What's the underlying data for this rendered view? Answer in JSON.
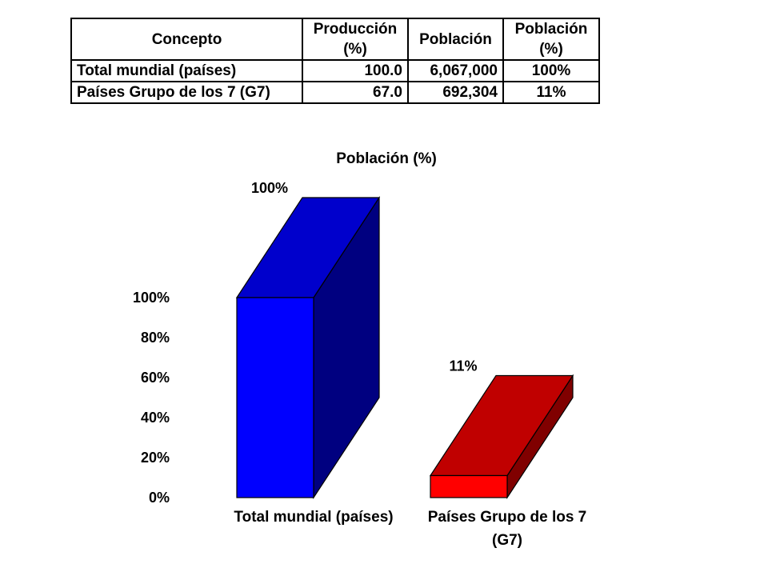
{
  "table": {
    "headers": [
      [
        "Concepto"
      ],
      [
        "Producción",
        "(%)"
      ],
      [
        "Población"
      ],
      [
        "Población",
        "(%)"
      ]
    ],
    "rows": [
      [
        "Total mundial (países)",
        "100.0",
        "6,067,000",
        "100%"
      ],
      [
        "Países Grupo de los 7 (G7)",
        "67.0",
        "692,304",
        "11%"
      ]
    ]
  },
  "chart_data": {
    "type": "bar",
    "title": "Población (%)",
    "categories": [
      [
        "Total mundial (países)"
      ],
      [
        "Países Grupo de los 7",
        "(G7)"
      ]
    ],
    "values": [
      100,
      11
    ],
    "data_labels": [
      "100%",
      "11%"
    ],
    "y_ticks": [
      "100%",
      "80%",
      "60%",
      "40%",
      "20%",
      "0%"
    ],
    "ylim": [
      0,
      100
    ],
    "grid": false,
    "legend": "none",
    "colors": {
      "bar1_front": "#0000ff",
      "bar1_top": "#0000cc",
      "bar1_side": "#000080",
      "bar2_front": "#ff0000",
      "bar2_top": "#c00000",
      "bar2_side": "#800000"
    }
  }
}
